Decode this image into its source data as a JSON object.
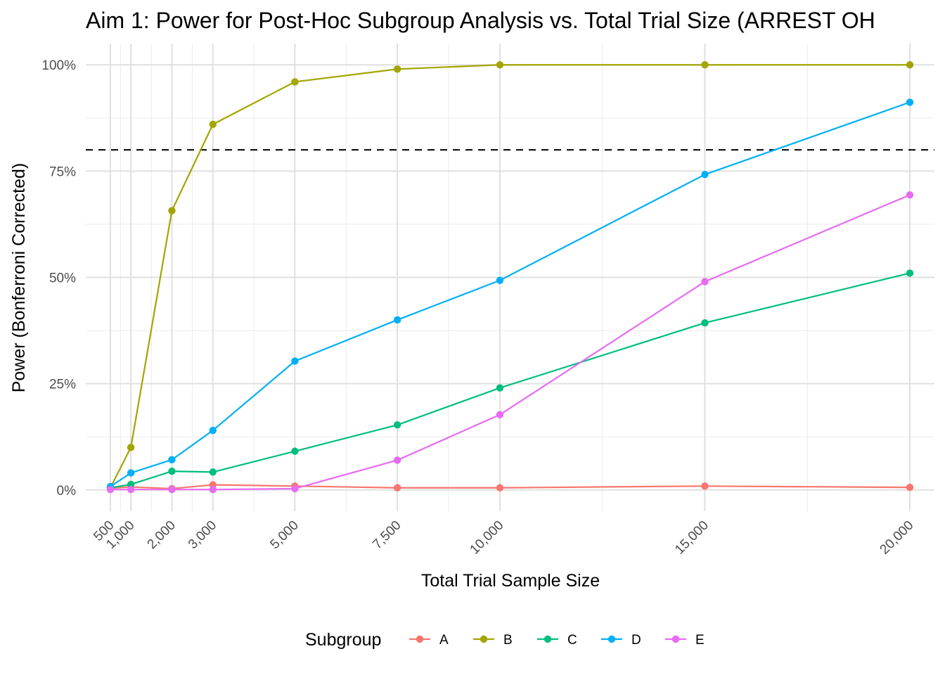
{
  "chart_data": {
    "type": "line",
    "title": "Aim 1: Power for Post-Hoc Subgroup Analysis vs. Total Trial Size (ARREST OH",
    "xlabel": "Total Trial Sample Size",
    "ylabel": "Power (Bonferroni Corrected)",
    "x": [
      500,
      1000,
      2000,
      3000,
      5000,
      7500,
      10000,
      15000,
      20000
    ],
    "x_tick_labels": [
      "500",
      "1,000",
      "2,000",
      "3,000",
      "5,000",
      "7,500",
      "10,000",
      "15,000",
      "20,000"
    ],
    "y_ticks": [
      0,
      25,
      50,
      75,
      100
    ],
    "y_tick_labels": [
      "0%",
      "25%",
      "50%",
      "75%",
      "100%"
    ],
    "xlim": [
      -100,
      20600
    ],
    "ylim": [
      -5,
      105
    ],
    "y_unit": "percent",
    "grid": true,
    "reference_line": {
      "y": 80,
      "style": "dashed",
      "color": "#000000"
    },
    "legend": {
      "title": "Subgroup",
      "position": "bottom"
    },
    "series": [
      {
        "name": "A",
        "color": "#F8766D",
        "values": [
          0.4,
          0.7,
          0.3,
          1.2,
          0.9,
          0.5,
          0.5,
          0.9,
          0.6
        ]
      },
      {
        "name": "B",
        "color": "#A3A500",
        "values": [
          0.5,
          10.0,
          65.7,
          86.0,
          96.0,
          99.0,
          100.0,
          100.0,
          100.0
        ]
      },
      {
        "name": "C",
        "color": "#00BF7D",
        "values": [
          0.5,
          1.3,
          4.4,
          4.2,
          9.1,
          15.3,
          24.0,
          39.3,
          51.0
        ]
      },
      {
        "name": "D",
        "color": "#00B0F6",
        "values": [
          0.8,
          4.0,
          7.1,
          14.0,
          30.3,
          40.0,
          49.3,
          74.2,
          91.2
        ]
      },
      {
        "name": "E",
        "color": "#E76BF3",
        "values": [
          0.1,
          0.1,
          0.1,
          0.1,
          0.3,
          7.0,
          17.7,
          49.0,
          69.4
        ]
      }
    ]
  }
}
